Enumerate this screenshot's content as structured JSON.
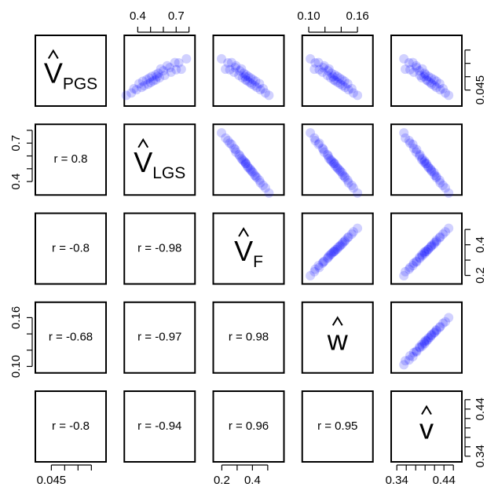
{
  "chart_data": {
    "type": "scatter_matrix",
    "color": "#0000ff",
    "variables": [
      {
        "symbol": "V",
        "subscript": "PGS",
        "lim": [
          0.039,
          0.0655
        ],
        "ticks": [
          0.045,
          {
            "value": 0.05,
            "label": null
          },
          {
            "value": 0.055,
            "label": null
          },
          {
            "value": 0.06,
            "label": null
          }
        ]
      },
      {
        "symbol": "V",
        "subscript": "LGS",
        "lim": [
          0.295,
          0.847
        ],
        "ticks": [
          0.4,
          {
            "value": 0.5,
            "label": null
          },
          {
            "value": 0.6,
            "label": null
          },
          0.7,
          {
            "value": 0.8,
            "label": null
          }
        ]
      },
      {
        "symbol": "V",
        "subscript": "F",
        "lim": [
          0.144,
          0.606
        ],
        "ticks": [
          0.2,
          {
            "value": 0.3,
            "label": null
          },
          0.4,
          {
            "value": 0.5,
            "label": null
          }
        ]
      },
      {
        "symbol": "w",
        "lim": [
          0.092,
          0.179
        ],
        "ticks": [
          {
            "value": 0.1,
            "label": "0.10"
          },
          {
            "value": 0.12,
            "label": null
          },
          {
            "value": 0.14,
            "label": null
          },
          0.16
        ]
      },
      {
        "symbol": "v",
        "lim": [
          0.328,
          0.478
        ],
        "ticks": [
          0.34,
          {
            "value": 0.36,
            "label": null
          },
          {
            "value": 0.38,
            "label": null
          },
          {
            "value": 0.4,
            "label": null
          },
          {
            "value": 0.42,
            "label": null
          },
          0.44,
          {
            "value": 0.46,
            "label": null
          }
        ]
      }
    ],
    "observations": [
      [
        0.0567,
        0.78,
        0.198,
        0.102,
        0.355
      ],
      [
        0.0528,
        0.74,
        0.224,
        0.107,
        0.358
      ],
      [
        0.0552,
        0.72,
        0.24,
        0.108,
        0.366
      ],
      [
        0.0526,
        0.7,
        0.252,
        0.113,
        0.368
      ],
      [
        0.0553,
        0.69,
        0.264,
        0.112,
        0.374
      ],
      [
        0.0517,
        0.66,
        0.28,
        0.117,
        0.376
      ],
      [
        0.0534,
        0.65,
        0.288,
        0.118,
        0.382
      ],
      [
        0.0541,
        0.63,
        0.292,
        0.119,
        0.381
      ],
      [
        0.0505,
        0.61,
        0.312,
        0.123,
        0.389
      ],
      [
        0.0522,
        0.6,
        0.318,
        0.124,
        0.388
      ],
      [
        0.0529,
        0.58,
        0.328,
        0.125,
        0.394
      ],
      [
        0.0496,
        0.57,
        0.335,
        0.127,
        0.393
      ],
      [
        0.0513,
        0.56,
        0.343,
        0.128,
        0.399
      ],
      [
        0.05,
        0.55,
        0.352,
        0.13,
        0.398
      ],
      [
        0.0488,
        0.54,
        0.356,
        0.131,
        0.403
      ],
      [
        0.0507,
        0.54,
        0.358,
        0.132,
        0.401
      ],
      [
        0.0484,
        0.52,
        0.368,
        0.133,
        0.406
      ],
      [
        0.0501,
        0.51,
        0.372,
        0.135,
        0.407
      ],
      [
        0.0478,
        0.5,
        0.384,
        0.136,
        0.411
      ],
      [
        0.0495,
        0.49,
        0.389,
        0.138,
        0.413
      ],
      [
        0.0472,
        0.48,
        0.396,
        0.139,
        0.414
      ],
      [
        0.0489,
        0.47,
        0.404,
        0.141,
        0.419
      ],
      [
        0.0466,
        0.45,
        0.415,
        0.142,
        0.42
      ],
      [
        0.0483,
        0.44,
        0.421,
        0.144,
        0.424
      ],
      [
        0.046,
        0.43,
        0.43,
        0.145,
        0.424
      ],
      [
        0.0474,
        0.41,
        0.446,
        0.148,
        0.431
      ],
      [
        0.0451,
        0.39,
        0.452,
        0.149,
        0.432
      ],
      [
        0.0455,
        0.37,
        0.47,
        0.153,
        0.438
      ],
      [
        0.0439,
        0.35,
        0.485,
        0.155,
        0.443
      ],
      [
        0.043,
        0.31,
        0.508,
        0.16,
        0.45
      ]
    ],
    "correlations": {
      "values": [
        0.8,
        -0.8,
        -0.98,
        -0.68,
        -0.97,
        0.98,
        -0.8,
        -0.94,
        0.96,
        0.95
      ],
      "value_labels": [
        "r = 0.8",
        "r = -0.8",
        "r = -0.98",
        "r = -0.68",
        "r = -0.97",
        "r = 0.98",
        "r = -0.8",
        "r = -0.94",
        "r = 0.96",
        "r = 0.95"
      ]
    }
  }
}
